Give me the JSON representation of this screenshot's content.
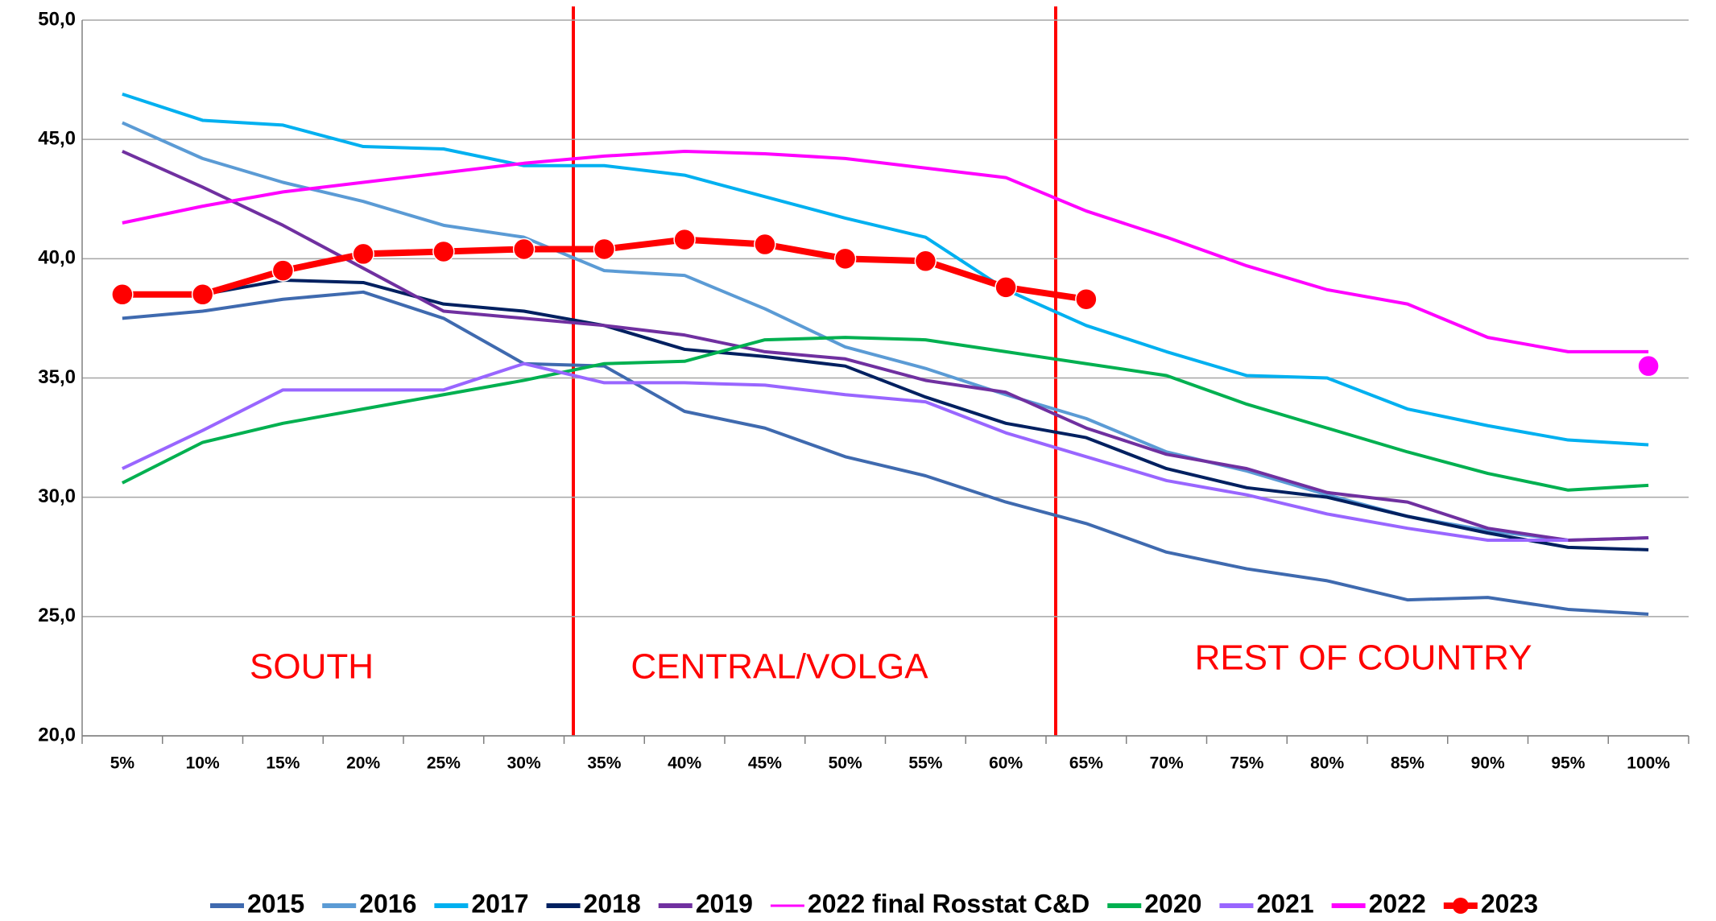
{
  "chart_data": {
    "type": "line",
    "categories": [
      "5%",
      "10%",
      "15%",
      "20%",
      "25%",
      "30%",
      "35%",
      "40%",
      "45%",
      "50%",
      "55%",
      "60%",
      "65%",
      "70%",
      "75%",
      "80%",
      "85%",
      "90%",
      "95%",
      "100%"
    ],
    "ylim": [
      20,
      50
    ],
    "yticks": [
      {
        "value": 20,
        "label": "20,0"
      },
      {
        "value": 25,
        "label": "25,0"
      },
      {
        "value": 30,
        "label": "30,0"
      },
      {
        "value": 35,
        "label": "35,0"
      },
      {
        "value": 40,
        "label": "40,0"
      },
      {
        "value": 45,
        "label": "45,0"
      },
      {
        "value": 50,
        "label": "50,0"
      }
    ],
    "grid": true,
    "annotations": [
      "SOUTH",
      "CENTRAL/VOLGA",
      "REST OF COUNTRY"
    ],
    "series": [
      {
        "name": "2015",
        "color": "#3f6aaf",
        "width": 4,
        "values": [
          37.5,
          37.8,
          38.3,
          38.6,
          37.5,
          35.6,
          35.5,
          33.6,
          32.9,
          31.7,
          30.9,
          29.8,
          28.9,
          27.7,
          27.0,
          26.5,
          25.7,
          25.8,
          25.3,
          25.1
        ]
      },
      {
        "name": "2016",
        "color": "#5b9bd5",
        "width": 4,
        "values": [
          45.7,
          44.2,
          43.2,
          42.4,
          41.4,
          40.9,
          39.5,
          39.3,
          37.9,
          36.3,
          35.4,
          34.3,
          33.3,
          31.9,
          31.1,
          30.1,
          29.2,
          28.6,
          28.2,
          28.3
        ]
      },
      {
        "name": "2017",
        "color": "#00b0f0",
        "width": 4,
        "values": [
          46.9,
          45.8,
          45.6,
          44.7,
          44.6,
          43.9,
          43.9,
          43.5,
          42.6,
          41.7,
          40.9,
          38.7,
          37.2,
          36.1,
          35.1,
          35.0,
          33.7,
          33.0,
          32.4,
          32.2
        ]
      },
      {
        "name": "2018",
        "color": "#002060",
        "width": 4,
        "values": [
          38.5,
          38.5,
          39.1,
          39.0,
          38.1,
          37.8,
          37.2,
          36.2,
          35.9,
          35.5,
          34.2,
          33.1,
          32.5,
          31.2,
          30.4,
          30.0,
          29.2,
          28.5,
          27.9,
          27.8
        ]
      },
      {
        "name": "2019",
        "color": "#7030a0",
        "width": 4,
        "values": [
          44.5,
          43.0,
          41.4,
          39.6,
          37.8,
          37.5,
          37.2,
          36.8,
          36.1,
          35.8,
          34.9,
          34.4,
          32.9,
          31.8,
          31.2,
          30.2,
          29.8,
          28.7,
          28.2,
          28.3
        ]
      },
      {
        "name": "2022 final Rosstat C&D",
        "color": "#ff00ff",
        "width": 2,
        "marker": true,
        "values": [
          null,
          null,
          null,
          null,
          null,
          null,
          null,
          null,
          null,
          null,
          null,
          null,
          null,
          null,
          null,
          null,
          null,
          null,
          null,
          35.5
        ]
      },
      {
        "name": "2020",
        "color": "#00b050",
        "width": 4,
        "values": [
          30.6,
          32.3,
          33.1,
          33.7,
          34.3,
          34.9,
          35.6,
          35.7,
          36.6,
          36.7,
          36.6,
          36.1,
          35.6,
          35.1,
          33.9,
          32.9,
          31.9,
          31.0,
          30.3,
          30.5
        ]
      },
      {
        "name": "2021",
        "color": "#9966ff",
        "width": 4,
        "values": [
          31.2,
          32.8,
          34.5,
          34.5,
          34.5,
          35.6,
          34.8,
          34.8,
          34.7,
          34.3,
          34.0,
          32.7,
          31.7,
          30.7,
          30.1,
          29.3,
          28.7,
          28.2,
          28.2,
          null
        ]
      },
      {
        "name": "2022",
        "color": "#ff00ff",
        "width": 4,
        "values": [
          41.5,
          42.2,
          42.8,
          43.2,
          43.6,
          44.0,
          44.3,
          44.5,
          44.4,
          44.2,
          43.8,
          43.4,
          42.0,
          40.9,
          39.7,
          38.7,
          38.1,
          36.7,
          36.1,
          36.1
        ]
      },
      {
        "name": "2023",
        "color": "#ff0000",
        "width": 8,
        "marker": true,
        "values": [
          38.5,
          38.5,
          39.5,
          40.2,
          40.3,
          40.4,
          40.4,
          40.8,
          40.6,
          40.0,
          39.9,
          38.8,
          38.3,
          null,
          null,
          null,
          null,
          null,
          null,
          null
        ]
      }
    ]
  }
}
